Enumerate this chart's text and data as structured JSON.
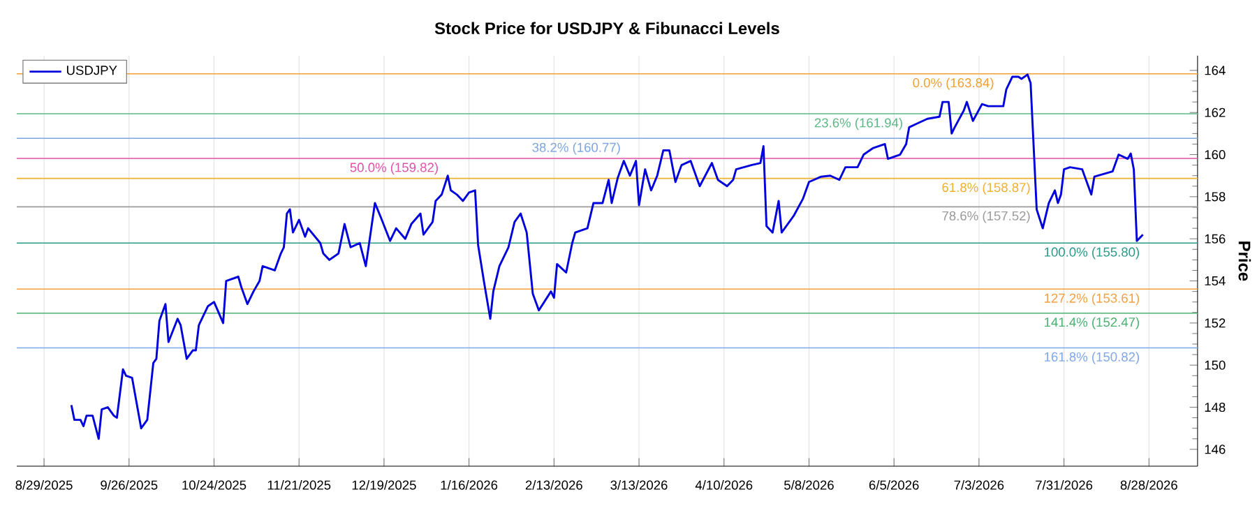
{
  "chart_data": {
    "type": "line",
    "title": "Stock Price for USDJPY & Fibunacci Levels",
    "ylabel": "Price",
    "x": [
      "2025-09-07",
      "2025-09-08",
      "2025-09-10",
      "2025-09-11",
      "2025-09-12",
      "2025-09-14",
      "2025-09-16",
      "2025-09-17",
      "2025-09-19",
      "2025-09-21",
      "2025-09-22",
      "2025-09-24",
      "2025-09-25",
      "2025-09-27",
      "2025-09-30",
      "2025-10-02",
      "2025-10-04",
      "2025-10-05",
      "2025-10-06",
      "2025-10-08",
      "2025-10-09",
      "2025-10-12",
      "2025-10-13",
      "2025-10-15",
      "2025-10-17",
      "2025-10-18",
      "2025-10-19",
      "2025-10-22",
      "2025-10-24",
      "2025-10-27",
      "2025-10-28",
      "2025-11-01",
      "2025-11-02",
      "2025-11-04",
      "2025-11-06",
      "2025-11-08",
      "2025-11-09",
      "2025-11-13",
      "2025-11-15",
      "2025-11-16",
      "2025-11-17",
      "2025-11-18",
      "2025-11-19",
      "2025-11-21",
      "2025-11-23",
      "2025-11-24",
      "2025-11-28",
      "2025-11-29",
      "2025-12-01",
      "2025-12-04",
      "2025-12-06",
      "2025-12-08",
      "2025-12-11",
      "2025-12-13",
      "2025-12-16",
      "2025-12-18",
      "2025-12-21",
      "2025-12-23",
      "2025-12-26",
      "2025-12-28",
      "2025-12-31",
      "2026-01-01",
      "2026-01-04",
      "2026-01-05",
      "2026-01-07",
      "2026-01-09",
      "2026-01-10",
      "2026-01-12",
      "2026-01-14",
      "2026-01-16",
      "2026-01-18",
      "2026-01-19",
      "2026-01-21",
      "2026-01-23",
      "2026-01-24",
      "2026-01-26",
      "2026-01-29",
      "2026-01-31",
      "2026-02-02",
      "2026-02-04",
      "2026-02-06",
      "2026-02-08",
      "2026-02-12",
      "2026-02-13",
      "2026-02-14",
      "2026-02-17",
      "2026-02-19",
      "2026-02-20",
      "2026-02-24",
      "2026-02-26",
      "2026-03-01",
      "2026-03-03",
      "2026-03-04",
      "2026-03-06",
      "2026-03-08",
      "2026-03-10",
      "2026-03-12",
      "2026-03-13",
      "2026-03-15",
      "2026-03-17",
      "2026-03-19",
      "2026-03-21",
      "2026-03-23",
      "2026-03-25",
      "2026-03-27",
      "2026-03-30",
      "2026-04-02",
      "2026-04-06",
      "2026-04-08",
      "2026-04-11",
      "2026-04-13",
      "2026-04-14",
      "2026-04-19",
      "2026-04-22",
      "2026-04-23",
      "2026-04-24",
      "2026-04-26",
      "2026-04-28",
      "2026-04-29",
      "2026-05-03",
      "2026-05-06",
      "2026-05-08",
      "2026-05-12",
      "2026-05-15",
      "2026-05-18",
      "2026-05-20",
      "2026-05-24",
      "2026-05-26",
      "2026-05-29",
      "2026-06-02",
      "2026-06-03",
      "2026-06-07",
      "2026-06-09",
      "2026-06-10",
      "2026-06-13",
      "2026-06-16",
      "2026-06-20",
      "2026-06-21",
      "2026-06-23",
      "2026-06-24",
      "2026-06-25",
      "2026-06-28",
      "2026-06-29",
      "2026-07-01",
      "2026-07-04",
      "2026-07-06",
      "2026-07-11",
      "2026-07-12",
      "2026-07-14",
      "2026-07-16",
      "2026-07-17",
      "2026-07-19",
      "2026-07-20",
      "2026-07-22",
      "2026-07-24",
      "2026-07-26",
      "2026-07-28",
      "2026-07-29",
      "2026-07-30",
      "2026-07-31",
      "2026-08-02",
      "2026-08-06",
      "2026-08-07",
      "2026-08-09",
      "2026-08-10",
      "2026-08-16",
      "2026-08-18",
      "2026-08-21",
      "2026-08-22",
      "2026-08-23",
      "2026-08-24",
      "2026-08-26"
    ],
    "series": [
      {
        "name": "USDJPY",
        "color": "#0000dd",
        "values": [
          148.1,
          147.4,
          147.4,
          147.1,
          147.6,
          147.6,
          146.5,
          147.9,
          148.0,
          147.6,
          147.5,
          149.8,
          149.5,
          149.4,
          147.0,
          147.4,
          150.1,
          150.3,
          152.1,
          152.9,
          151.1,
          152.2,
          151.9,
          150.3,
          150.7,
          150.7,
          151.9,
          152.8,
          153.0,
          152.0,
          154.0,
          154.2,
          153.7,
          152.9,
          153.5,
          154.0,
          154.7,
          154.5,
          155.3,
          155.6,
          157.2,
          157.4,
          156.3,
          156.9,
          156.1,
          156.5,
          155.8,
          155.3,
          155.0,
          155.3,
          156.7,
          155.6,
          155.8,
          154.7,
          157.7,
          157.0,
          155.9,
          156.5,
          156.0,
          156.7,
          157.2,
          156.2,
          156.8,
          157.8,
          158.1,
          159.0,
          158.3,
          158.1,
          157.8,
          158.2,
          158.3,
          155.7,
          153.9,
          152.2,
          153.5,
          154.7,
          155.6,
          156.8,
          157.2,
          156.3,
          153.4,
          152.6,
          153.5,
          153.2,
          154.8,
          154.4,
          155.8,
          156.3,
          156.5,
          157.7,
          157.7,
          158.8,
          157.7,
          158.9,
          159.7,
          159.0,
          159.7,
          157.6,
          159.3,
          158.3,
          159.0,
          160.2,
          160.2,
          158.7,
          159.5,
          159.7,
          158.5,
          159.6,
          158.8,
          158.5,
          158.8,
          159.3,
          159.5,
          159.6,
          160.4,
          156.6,
          156.3,
          157.8,
          156.3,
          157.1,
          157.9,
          158.7,
          158.95,
          159.0,
          158.8,
          159.4,
          159.4,
          160.0,
          160.3,
          160.5,
          159.8,
          160.0,
          160.5,
          161.3,
          161.5,
          161.7,
          161.8,
          162.5,
          162.5,
          161.0,
          161.3,
          162.1,
          162.5,
          161.6,
          162.4,
          162.3,
          162.3,
          163.1,
          163.7,
          163.7,
          163.6,
          163.8,
          163.4,
          157.4,
          156.5,
          157.7,
          158.3,
          157.7,
          158.1,
          159.3,
          159.4,
          159.3,
          158.9,
          158.1,
          158.95,
          159.2,
          160.0,
          159.8,
          160.05,
          159.3,
          155.9,
          156.2
        ]
      }
    ],
    "xlim": [
      "2025-08-20",
      "2026-09-13"
    ],
    "xticks": [
      {
        "value": "2025-08-29",
        "label": "8/29/2025"
      },
      {
        "value": "2025-09-26",
        "label": "9/26/2025"
      },
      {
        "value": "2025-10-24",
        "label": "10/24/2025"
      },
      {
        "value": "2025-11-21",
        "label": "11/21/2025"
      },
      {
        "value": "2025-12-19",
        "label": "12/19/2025"
      },
      {
        "value": "2026-01-16",
        "label": "1/16/2026"
      },
      {
        "value": "2026-02-13",
        "label": "2/13/2026"
      },
      {
        "value": "2026-03-13",
        "label": "3/13/2026"
      },
      {
        "value": "2026-04-10",
        "label": "4/10/2026"
      },
      {
        "value": "2026-05-08",
        "label": "5/8/2026"
      },
      {
        "value": "2026-06-05",
        "label": "6/5/2026"
      },
      {
        "value": "2026-07-03",
        "label": "7/3/2026"
      },
      {
        "value": "2026-07-31",
        "label": "7/31/2026"
      },
      {
        "value": "2026-08-28",
        "label": "8/28/2026"
      }
    ],
    "ylim": [
      145.2,
      164.7
    ],
    "yticks": [
      146,
      148,
      150,
      152,
      154,
      156,
      158,
      160,
      162,
      164
    ],
    "ref_lines": [
      {
        "axis": "y",
        "value": 163.84,
        "label": "0.0% (163.84)",
        "color": "#f0a030"
      },
      {
        "axis": "y",
        "value": 161.94,
        "label": "23.6% (161.94)",
        "color": "#5cb884"
      },
      {
        "axis": "y",
        "value": 160.77,
        "label": "38.2% (160.77)",
        "color": "#7ea6e0"
      },
      {
        "axis": "y",
        "value": 159.82,
        "label": "50.0% (159.82)",
        "color": "#e050a8"
      },
      {
        "axis": "y",
        "value": 158.87,
        "label": "61.8% (158.87)",
        "color": "#f0b030"
      },
      {
        "axis": "y",
        "value": 157.52,
        "label": "78.6% (157.52)",
        "color": "#9a9a9a"
      },
      {
        "axis": "y",
        "value": 155.8,
        "label": "100.0% (155.80)",
        "color": "#2a9a8a"
      },
      {
        "axis": "y",
        "value": 153.61,
        "label": "127.2% (153.61)",
        "color": "#f5a040"
      },
      {
        "axis": "y",
        "value": 152.47,
        "label": "141.4% (152.47)",
        "color": "#4cb070"
      },
      {
        "axis": "y",
        "value": 150.82,
        "label": "161.8% (150.82)",
        "color": "#7ea6e8"
      }
    ],
    "grid": "x",
    "legend": "top left",
    "marker": "none",
    "line_style": "solid"
  }
}
